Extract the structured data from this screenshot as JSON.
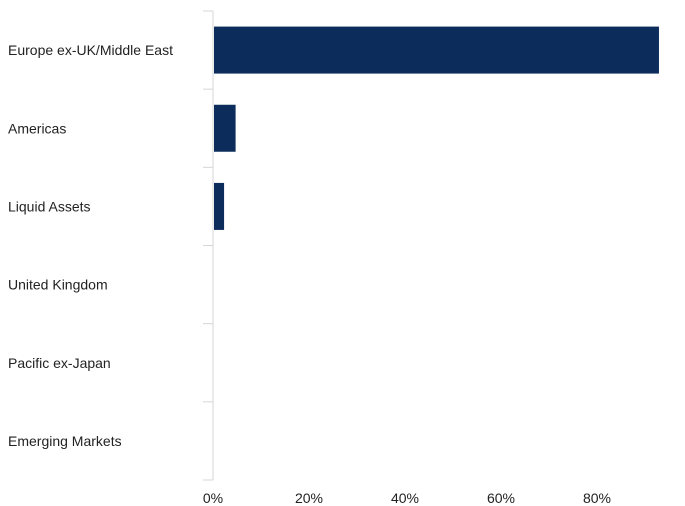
{
  "chart_data": {
    "type": "bar",
    "orientation": "horizontal",
    "categories": [
      "Europe ex-UK/Middle East",
      "Americas",
      "Liquid Assets",
      "United Kingdom",
      "Pacific ex-Japan",
      "Emerging Markets"
    ],
    "values": [
      92.7,
      4.5,
      2.1,
      0,
      0,
      0
    ],
    "xlim": [
      0,
      100
    ],
    "xticks": [
      0,
      20,
      40,
      60,
      80
    ],
    "tick_labels": [
      "0%",
      "20%",
      "40%",
      "60%",
      "80%"
    ],
    "grid": false,
    "bar_color": "#0c2d5c",
    "axis_color": "#d6d6d6"
  }
}
